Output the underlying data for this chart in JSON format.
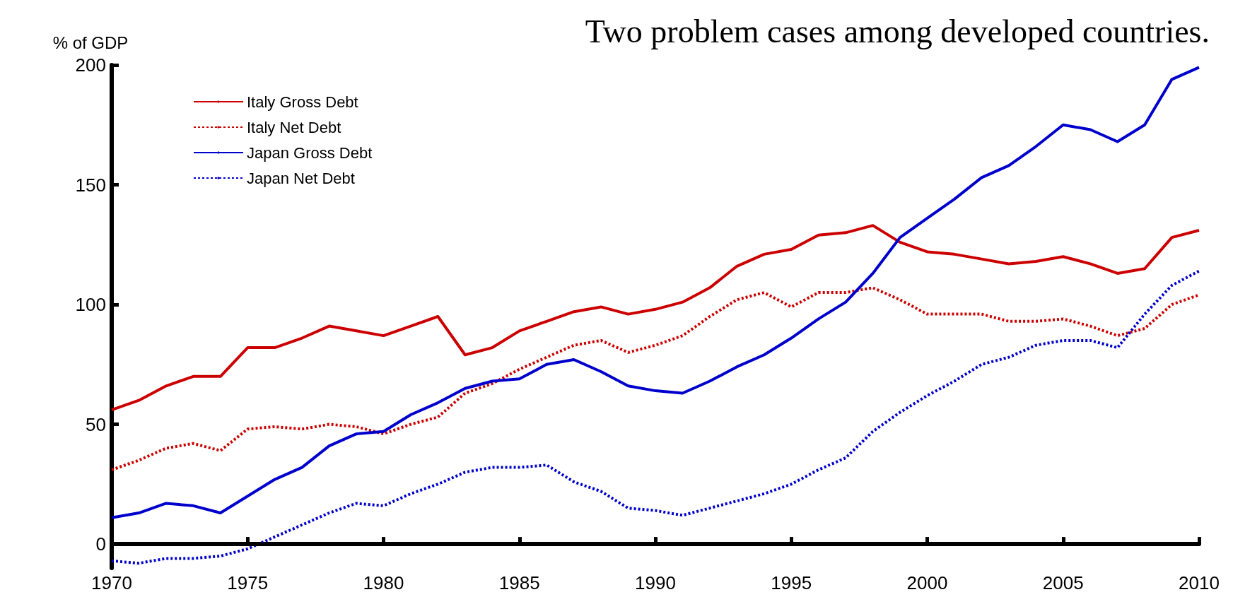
{
  "chart_data": {
    "type": "line",
    "title": "Two problem cases among developed countries.",
    "ylabel": "% of GDP",
    "x": [
      1970,
      1971,
      1972,
      1973,
      1974,
      1975,
      1976,
      1977,
      1978,
      1979,
      1980,
      1981,
      1982,
      1983,
      1984,
      1985,
      1986,
      1987,
      1988,
      1989,
      1990,
      1991,
      1992,
      1993,
      1994,
      1995,
      1996,
      1997,
      1998,
      1999,
      2000,
      2001,
      2002,
      2003,
      2004,
      2005,
      2006,
      2007,
      2008,
      2009,
      2010
    ],
    "xlim": [
      1970,
      2010
    ],
    "xticks": [
      1970,
      1975,
      1980,
      1985,
      1990,
      1995,
      2000,
      2005,
      2010
    ],
    "ylim": [
      -10,
      200
    ],
    "yticks": [
      0,
      50,
      100,
      150,
      200
    ],
    "grid": false,
    "legend": "top left",
    "marker": "none",
    "ref_lines": [
      {
        "axis": "y",
        "value": 0,
        "color": "#000000",
        "line_style": "solid"
      }
    ],
    "series": [
      {
        "name": "Italy Gross Debt",
        "color": "#cc0000",
        "line_style": "solid",
        "values": [
          56,
          60,
          66,
          70,
          70,
          82,
          82,
          86,
          91,
          89,
          87,
          91,
          95,
          79,
          82,
          89,
          93,
          97,
          99,
          96,
          98,
          101,
          107,
          116,
          121,
          123,
          129,
          130,
          133,
          126,
          122,
          121,
          119,
          117,
          118,
          120,
          117,
          113,
          115,
          128,
          131
        ]
      },
      {
        "name": "Italy Net Debt",
        "color": "#cc0000",
        "line_style": "dotted",
        "values": [
          31,
          35,
          40,
          42,
          39,
          48,
          49,
          48,
          50,
          49,
          46,
          50,
          53,
          63,
          67,
          73,
          78,
          83,
          85,
          80,
          83,
          87,
          95,
          102,
          105,
          99,
          105,
          105,
          107,
          102,
          96,
          96,
          96,
          93,
          93,
          94,
          91,
          87,
          90,
          100,
          104
        ]
      },
      {
        "name": "Japan Gross Debt",
        "color": "#0000cc",
        "line_style": "solid",
        "values": [
          11,
          13,
          17,
          16,
          13,
          20,
          27,
          32,
          41,
          46,
          47,
          54,
          59,
          65,
          68,
          69,
          75,
          77,
          72,
          66,
          64,
          63,
          68,
          74,
          79,
          86,
          94,
          101,
          113,
          128,
          136,
          144,
          153,
          158,
          166,
          175,
          173,
          168,
          175,
          194,
          199
        ]
      },
      {
        "name": "Japan Net Debt",
        "color": "#0000cc",
        "line_style": "dotted",
        "values": [
          -7,
          -8,
          -6,
          -6,
          -5,
          -2,
          3,
          8,
          13,
          17,
          16,
          21,
          25,
          30,
          32,
          32,
          33,
          26,
          22,
          15,
          14,
          12,
          15,
          18,
          21,
          25,
          31,
          36,
          47,
          55,
          62,
          68,
          75,
          78,
          83,
          85,
          85,
          82,
          96,
          108,
          114
        ]
      }
    ]
  }
}
